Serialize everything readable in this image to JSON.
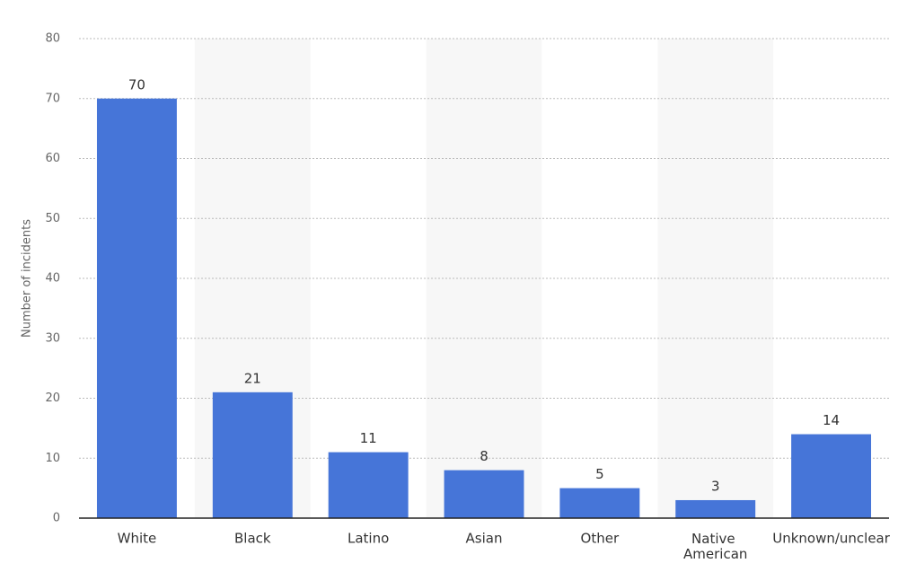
{
  "chart_data": {
    "type": "bar",
    "y_axis_label": "Number of incidents",
    "categories": [
      "White",
      "Black",
      "Latino",
      "Asian",
      "Other",
      "Native American",
      "Unknown/unclear"
    ],
    "values": [
      70,
      21,
      11,
      8,
      5,
      3,
      14
    ],
    "color": "#4675d8",
    "ylim": [
      0,
      80
    ],
    "yticks": [
      0,
      10,
      20,
      30,
      40,
      50,
      60,
      70,
      80
    ],
    "grid": true
  }
}
